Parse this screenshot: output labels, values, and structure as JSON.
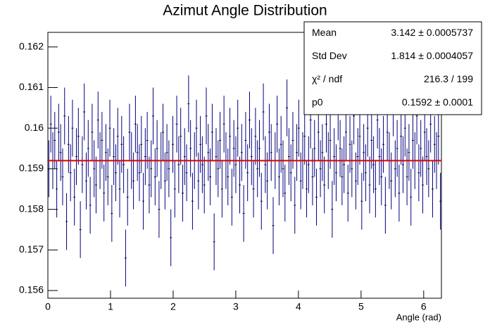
{
  "chart_data": {
    "type": "histogram",
    "title": "Azimut Angle Distribution",
    "x_label": "Angle (rad)",
    "color": "#000080",
    "error": 0.0007,
    "bins": [
      0,
      0.031,
      0.063,
      0.094,
      0.126,
      0.157,
      0.188,
      0.22,
      0.251,
      0.283,
      0.314,
      0.346,
      0.377,
      0.408,
      0.44,
      0.471,
      0.503,
      0.534,
      0.565,
      0.597,
      0.628,
      0.66,
      0.691,
      0.723,
      0.754,
      0.785,
      0.817,
      0.848,
      0.88,
      0.911,
      0.942,
      0.974,
      1.005,
      1.037,
      1.068,
      1.1,
      1.131,
      1.162,
      1.194,
      1.225,
      1.257,
      1.288,
      1.319,
      1.351,
      1.382,
      1.414,
      1.445,
      1.477,
      1.508,
      1.539,
      1.571,
      1.602,
      1.634,
      1.665,
      1.696,
      1.728,
      1.759,
      1.791,
      1.822,
      1.854,
      1.885,
      1.916,
      1.948,
      1.979,
      2.011,
      2.042,
      2.073,
      2.105,
      2.136,
      2.168,
      2.199,
      2.231,
      2.262,
      2.293,
      2.325,
      2.356,
      2.388,
      2.419,
      2.45,
      2.482,
      2.513,
      2.545,
      2.576,
      2.608,
      2.639,
      2.67,
      2.702,
      2.733,
      2.765,
      2.796,
      2.827,
      2.859,
      2.89,
      2.922,
      2.953,
      2.985,
      3.016,
      3.047,
      3.079,
      3.11,
      3.142,
      3.173,
      3.204,
      3.236,
      3.267,
      3.299,
      3.33,
      3.362,
      3.393,
      3.424,
      3.456,
      3.487,
      3.519,
      3.55,
      3.581,
      3.613,
      3.644,
      3.676,
      3.707,
      3.738,
      3.77,
      3.801,
      3.833,
      3.864,
      3.896,
      3.927,
      3.958,
      3.99,
      4.021,
      4.053,
      4.084,
      4.115,
      4.147,
      4.178,
      4.21,
      4.241,
      4.273,
      4.304,
      4.335,
      4.367,
      4.398,
      4.43,
      4.461,
      4.492,
      4.524,
      4.555,
      4.587,
      4.618,
      4.65,
      4.681,
      4.712,
      4.744,
      4.775,
      4.807,
      4.838,
      4.869,
      4.901,
      4.932,
      4.964,
      4.995,
      5.027,
      5.058,
      5.089,
      5.121,
      5.152,
      5.184,
      5.215,
      5.246,
      5.278,
      5.309,
      5.341,
      5.372,
      5.404,
      5.435,
      5.466,
      5.498,
      5.529,
      5.561,
      5.592,
      5.623,
      5.655,
      5.686,
      5.718,
      5.749,
      5.781,
      5.812,
      5.843,
      5.875,
      5.906,
      5.938,
      5.969,
      6,
      6.032,
      6.063,
      6.095,
      6.126,
      6.158,
      6.189,
      6.22,
      6.252,
      6.283
    ],
    "values": [
      0.159,
      0.1601,
      0.1592,
      0.1597,
      0.1585,
      0.1599,
      0.1594,
      0.1588,
      0.1603,
      0.1577,
      0.1596,
      0.1589,
      0.16,
      0.1583,
      0.1593,
      0.1598,
      0.1575,
      0.1591,
      0.1604,
      0.1587,
      0.1595,
      0.1581,
      0.1599,
      0.159,
      0.1586,
      0.1602,
      0.1592,
      0.1597,
      0.1584,
      0.1594,
      0.1588,
      0.16,
      0.1579,
      0.1593,
      0.1589,
      0.1598,
      0.1585,
      0.1596,
      0.1591,
      0.1568,
      0.1583,
      0.1599,
      0.1592,
      0.1587,
      0.1601,
      0.1594,
      0.1589,
      0.1596,
      0.1582,
      0.1593,
      0.1597,
      0.1586,
      0.159,
      0.1603,
      0.1588,
      0.1595,
      0.158,
      0.1592,
      0.1599,
      0.1587,
      0.1594,
      0.159,
      0.1573,
      0.1596,
      0.1585,
      0.1601,
      0.1591,
      0.1598,
      0.1584,
      0.1593,
      0.1589,
      0.1606,
      0.1595,
      0.1582,
      0.1592,
      0.16,
      0.1587,
      0.1596,
      0.1591,
      0.1586,
      0.1603,
      0.1594,
      0.1588,
      0.1599,
      0.1572,
      0.1593,
      0.159,
      0.1597,
      0.1585,
      0.1601,
      0.1592,
      0.1588,
      0.1598,
      0.1583,
      0.1595,
      0.1591,
      0.16,
      0.1586,
      0.1594,
      0.1579,
      0.1597,
      0.1589,
      0.1602,
      0.1593,
      0.1585,
      0.1598,
      0.159,
      0.1595,
      0.1582,
      0.1604,
      0.1591,
      0.1587,
      0.1599,
      0.1594,
      0.1576,
      0.1592,
      0.1601,
      0.1588,
      0.1596,
      0.159,
      0.1584,
      0.1605,
      0.1593,
      0.1589,
      0.1597,
      0.1581,
      0.1594,
      0.16,
      0.1587,
      0.1592,
      0.1598,
      0.1585,
      0.1591,
      0.1602,
      0.1588,
      0.1595,
      0.1583,
      0.1599,
      0.159,
      0.1594,
      0.1586,
      0.1601,
      0.1592,
      0.1597,
      0.158,
      0.1593,
      0.1589,
      0.1604,
      0.1595,
      0.1588,
      0.1591,
      0.1599,
      0.1584,
      0.1596,
      0.159,
      0.1603,
      0.1587,
      0.1593,
      0.1598,
      0.1582,
      0.1594,
      0.1589,
      0.16,
      0.1586,
      0.1597,
      0.1591,
      0.1585,
      0.1602,
      0.1593,
      0.1588,
      0.1596,
      0.1581,
      0.1599,
      0.1592,
      0.1587,
      0.1605,
      0.159,
      0.1595,
      0.1584,
      0.1598,
      0.1591,
      0.16,
      0.1588,
      0.1594,
      0.1583,
      0.1597,
      0.1592,
      0.1603,
      0.1589,
      0.1595,
      0.1586,
      0.1599,
      0.1593,
      0.159,
      0.1601,
      0.1585,
      0.1596,
      0.1592,
      0.1598,
      0.1582
    ],
    "fit": {
      "value": 0.1592,
      "color": "#dd0000"
    },
    "xlim": [
      0,
      6.283
    ],
    "xticks": [
      0,
      1,
      2,
      3,
      4,
      5,
      6
    ],
    "ylim": [
      0.15581,
      0.16236
    ],
    "yticks": [
      0.156,
      0.157,
      0.158,
      0.159,
      0.16,
      0.161,
      0.162
    ],
    "stats": [
      {
        "label": "Mean",
        "value": "3.142 ± 0.0005737"
      },
      {
        "label": "Std Dev",
        "value": "1.814 ± 0.0004057"
      },
      {
        "label": "χ² / ndf",
        "value": "216.3 / 199"
      },
      {
        "label": "p0",
        "value": "0.1592 ± 0.0001"
      }
    ]
  }
}
